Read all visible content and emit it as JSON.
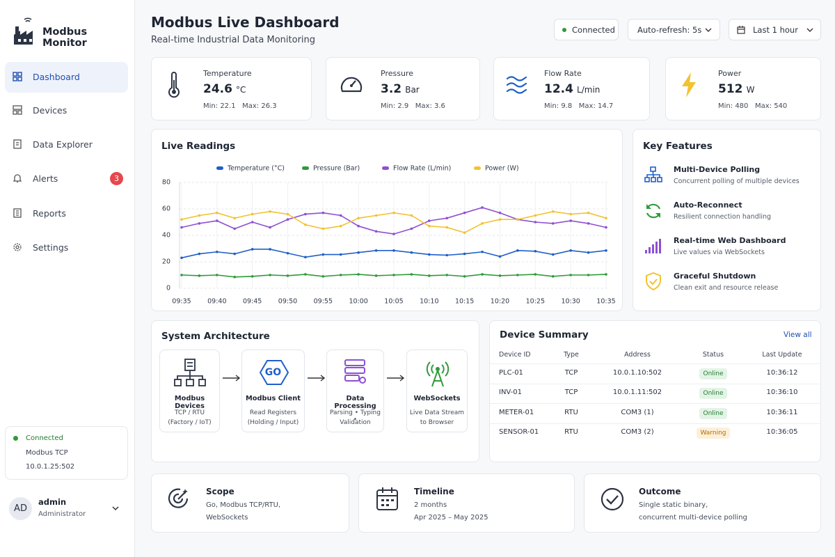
{
  "sidebar": {
    "brand": "Modbus Monitor",
    "nav": [
      {
        "label": "Dashboard"
      },
      {
        "label": "Devices"
      },
      {
        "label": "Data Explorer"
      },
      {
        "label": "Alerts",
        "badge": 3
      },
      {
        "label": "Reports"
      },
      {
        "label": "Settings"
      }
    ],
    "status": {
      "state": "Connected",
      "protocol": "Modbus TCP",
      "address": "10.0.1.25:502"
    },
    "user": {
      "initials": "AD",
      "name": "admin",
      "role": "Administrator"
    }
  },
  "header": {
    "title": "Modbus Live Dashboard",
    "subtitle": "Real-time Industrial Data Monitoring",
    "status": "Connected",
    "refresh": "Auto-refresh: 5s",
    "range": "Last 1 hour"
  },
  "metrics": [
    {
      "label": "Temperature",
      "value": 24.6,
      "unit": "°C",
      "min_label": "Min:",
      "min": 22.1,
      "max_label": "Max:",
      "max": 26.3
    },
    {
      "label": "Pressure",
      "value": 3.2,
      "unit": "Bar",
      "min_label": "Min:",
      "min": 2.9,
      "max_label": "Max:",
      "max": 3.6
    },
    {
      "label": "Flow Rate",
      "value": 12.4,
      "unit": "L/min",
      "min_label": "Min:",
      "min": 9.8,
      "max_label": "Max:",
      "max": 14.7
    },
    {
      "label": "Power",
      "value": 512,
      "unit": "W",
      "min_label": "Min:",
      "min": 480,
      "max_label": "Max:",
      "max": 540
    }
  ],
  "chart_data": {
    "type": "line",
    "title": "Live Readings",
    "categories": [
      "09:35",
      null,
      "09:40",
      null,
      "09:45",
      null,
      "09:50",
      null,
      "09:55",
      null,
      "10:00",
      null,
      "10:05",
      null,
      "10:10",
      null,
      "10:15",
      null,
      "10:20",
      null,
      "10:25",
      null,
      "10:30",
      null,
      "10:35"
    ],
    "series": [
      {
        "name": "Temperature (°C)",
        "color": "#1f5fc9",
        "values": [
          23,
          26,
          27.5,
          26,
          29.5,
          29.5,
          26.5,
          23.5,
          25.5,
          25.5,
          27,
          28.5,
          28.5,
          27,
          25.5,
          25,
          26,
          27.5,
          24,
          28.5,
          28,
          25.5,
          28.5,
          27,
          28.5
        ]
      },
      {
        "name": "Pressure (Bar)",
        "color": "#2e9a3a",
        "values": [
          10,
          9.5,
          10,
          8.5,
          9,
          10,
          9.5,
          10.5,
          9,
          10,
          10.5,
          9.5,
          10,
          10.5,
          9.5,
          10,
          9,
          10.5,
          9.5,
          10,
          10.5,
          9,
          10,
          10,
          10.5
        ]
      },
      {
        "name": "Flow Rate (L/min)",
        "color": "#8e4fd1",
        "values": [
          46,
          49,
          51,
          45,
          50,
          46,
          52,
          56,
          57,
          55,
          47,
          43,
          41,
          45,
          51,
          53,
          57,
          61,
          57,
          52,
          50,
          49,
          51,
          49,
          46
        ]
      },
      {
        "name": "Power (W)",
        "color": "#f2c230",
        "values": [
          52,
          55,
          57,
          53,
          56,
          58,
          56,
          48,
          45,
          47,
          53,
          55,
          57,
          55,
          47,
          46,
          42,
          49,
          52,
          52,
          55,
          58,
          56,
          57,
          53
        ]
      }
    ],
    "ylim": [
      0,
      80
    ],
    "yticks": [
      0,
      20,
      40,
      60,
      80
    ],
    "grid": true,
    "legend": "top"
  },
  "features": {
    "title": "Key Features",
    "items": [
      {
        "title": "Multi-Device Polling",
        "desc": "Concurrent polling of multiple devices"
      },
      {
        "title": "Auto-Reconnect",
        "desc": "Resilient connection handling"
      },
      {
        "title": "Real-time Web Dashboard",
        "desc": "Live values via WebSockets"
      },
      {
        "title": "Graceful Shutdown",
        "desc": "Clean exit and resource release"
      }
    ]
  },
  "architecture": {
    "title": "System Architecture",
    "nodes": [
      {
        "title": "Modbus Devices",
        "lines": [
          "TCP / RTU",
          "(Factory / IoT)"
        ]
      },
      {
        "title": "Modbus Client",
        "icon_text": "GO",
        "lines": [
          "Read Registers",
          "(Holding / Input)"
        ]
      },
      {
        "title": "Data Processing",
        "lines": [
          "Parsing • Typing •",
          "Validation"
        ]
      },
      {
        "title": "WebSockets",
        "lines": [
          "Live Data Stream",
          "to Browser"
        ]
      }
    ]
  },
  "devices": {
    "title": "Device Summary",
    "link": "View all",
    "columns": [
      "Device ID",
      "Type",
      "Address",
      "Status",
      "Last Update"
    ],
    "rows": [
      [
        "PLC-01",
        "TCP",
        "10.0.1.10:502",
        "Online",
        "10:36:12"
      ],
      [
        "INV-01",
        "TCP",
        "10.0.1.11:502",
        "Online",
        "10:36:10"
      ],
      [
        "METER-01",
        "RTU",
        "COM3  (1)",
        "Online",
        "10:36:11"
      ],
      [
        "SENSOR-01",
        "RTU",
        "COM3  (2)",
        "Warning",
        "10:36:05"
      ]
    ]
  },
  "summary": [
    {
      "title": "Scope",
      "lines": [
        "Go, Modbus TCP/RTU,",
        "WebSockets"
      ]
    },
    {
      "title": "Timeline",
      "lines": [
        "2 months",
        "Apr 2025 – May 2025"
      ]
    },
    {
      "title": "Outcome",
      "lines": [
        "Single static binary,",
        "concurrent multi-device polling"
      ]
    }
  ]
}
